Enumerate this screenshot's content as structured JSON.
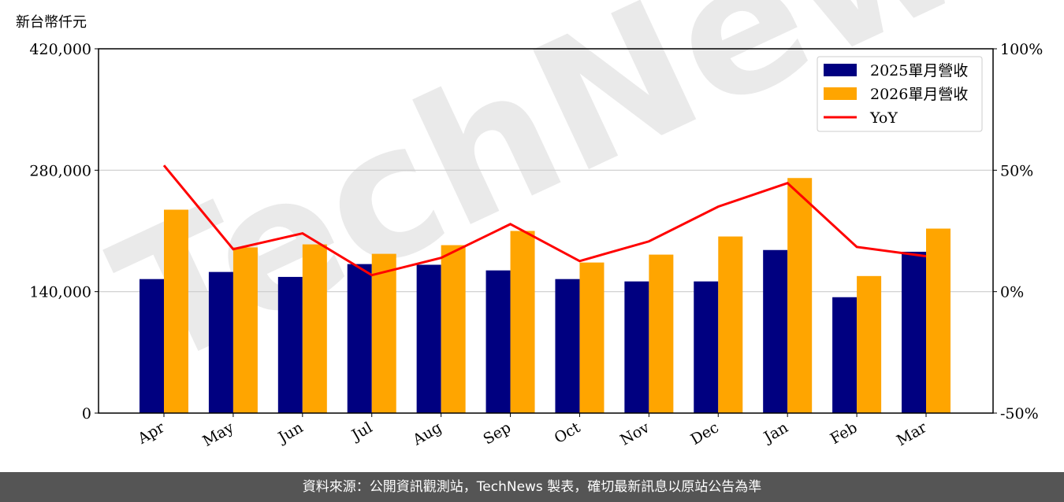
{
  "chart_data": {
    "type": "bar",
    "ylabel": "新台幣仟元",
    "categories": [
      "Apr",
      "May",
      "Jun",
      "Jul",
      "Aug",
      "Sep",
      "Oct",
      "Nov",
      "Dec",
      "Jan",
      "Feb",
      "Mar"
    ],
    "series": [
      {
        "name": "2025單月營收",
        "type": "bar",
        "axis": "left",
        "color": "#000080",
        "values": [
          154500,
          162700,
          157000,
          171800,
          171000,
          164500,
          154500,
          151800,
          151800,
          188000,
          133600,
          186000
        ]
      },
      {
        "name": "2026單月營收",
        "type": "bar",
        "axis": "left",
        "color": "#FFA500",
        "values": [
          234500,
          191000,
          194500,
          183600,
          193600,
          210000,
          173600,
          182700,
          203600,
          271000,
          158000,
          212700
        ]
      },
      {
        "name": "YoY",
        "type": "line",
        "axis": "right",
        "color": "#FF0000",
        "values": [
          52,
          17.5,
          24,
          6.8,
          13.9,
          27.8,
          12.6,
          20.7,
          35,
          44.7,
          18.4,
          14.6
        ]
      }
    ],
    "ylim": [
      0,
      420000
    ],
    "yticks": [
      "0",
      "140,000",
      "280,000",
      "420,000"
    ],
    "y2lim": [
      -50,
      100
    ],
    "y2ticks": [
      "-50%",
      "0%",
      "50%",
      "100%"
    ],
    "grid": "horizontal",
    "legend": "top-right"
  },
  "watermark": "TechNews",
  "footer": "資料來源：公開資訊觀測站，TechNews 製表，確切最新訊息以原站公告為準"
}
